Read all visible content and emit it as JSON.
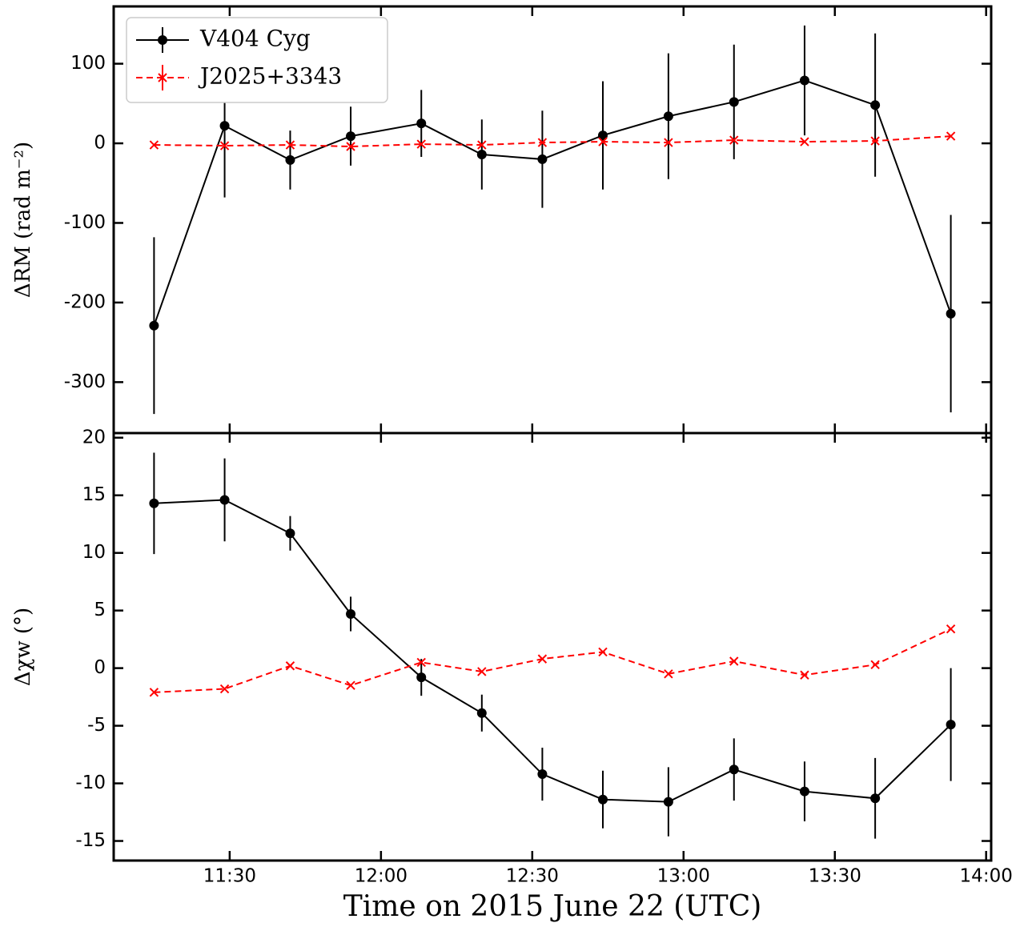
{
  "chart_data": [
    {
      "type": "line",
      "ylabel": "ΔRM (rad m⁻²)",
      "legend": "upper left",
      "x": [
        "11:15",
        "11:29",
        "11:42",
        "11:54",
        "12:08",
        "12:20",
        "12:32",
        "12:44",
        "12:57",
        "13:10",
        "13:24",
        "13:38",
        "13:53"
      ],
      "xlim": [
        "11:07",
        "14:01"
      ],
      "xticks": [
        "11:30",
        "12:00",
        "12:30",
        "13:00",
        "13:30",
        "14:00"
      ],
      "ylim": [
        -364,
        172
      ],
      "yticks": [
        100,
        0,
        -100,
        -200,
        -300
      ],
      "series": [
        {
          "name": "V404 Cyg",
          "color": "#000000",
          "linestyle": "solid",
          "marker": "circle",
          "values": [
            -229,
            22,
            -21,
            9,
            25,
            -14,
            -20,
            10,
            34,
            52,
            79,
            48,
            -214
          ],
          "errors": [
            111,
            90,
            37,
            37,
            42,
            44,
            61,
            68,
            79,
            72,
            69,
            90,
            124
          ]
        },
        {
          "name": "J2025+3343",
          "color": "#ff0000",
          "linestyle": "dashed",
          "marker": "x",
          "values": [
            -2,
            -3,
            -2,
            -4,
            -1,
            -2,
            1,
            2,
            1,
            4,
            2,
            3,
            9
          ]
        }
      ]
    },
    {
      "type": "line",
      "ylabel": "Δχw (°)",
      "xlabel": "Time on 2015 June 22 (UTC)",
      "x": [
        "11:15",
        "11:29",
        "11:42",
        "11:54",
        "12:08",
        "12:20",
        "12:32",
        "12:44",
        "12:57",
        "13:10",
        "13:24",
        "13:38",
        "13:53"
      ],
      "xlim": [
        "11:07",
        "14:01"
      ],
      "xticks": [
        "11:30",
        "12:00",
        "12:30",
        "13:00",
        "13:30",
        "14:00"
      ],
      "ylim": [
        -16.7,
        20.4
      ],
      "yticks": [
        20,
        15,
        10,
        5,
        0,
        -5,
        -10,
        -15
      ],
      "series": [
        {
          "color": "#000000",
          "linestyle": "solid",
          "marker": "circle",
          "values": [
            14.3,
            14.6,
            11.7,
            4.7,
            -0.8,
            -3.9,
            -9.2,
            -11.4,
            -11.6,
            -8.8,
            -10.7,
            -11.3,
            -4.9
          ],
          "errors": [
            4.4,
            3.6,
            1.5,
            1.5,
            1.6,
            1.6,
            2.3,
            2.5,
            3.0,
            2.7,
            2.6,
            3.5,
            4.9
          ]
        },
        {
          "color": "#ff0000",
          "linestyle": "dashed",
          "marker": "x",
          "values": [
            -2.1,
            -1.8,
            0.2,
            -1.5,
            0.5,
            -0.3,
            0.8,
            1.4,
            -0.5,
            0.6,
            -0.6,
            0.3,
            3.4
          ]
        }
      ]
    }
  ]
}
